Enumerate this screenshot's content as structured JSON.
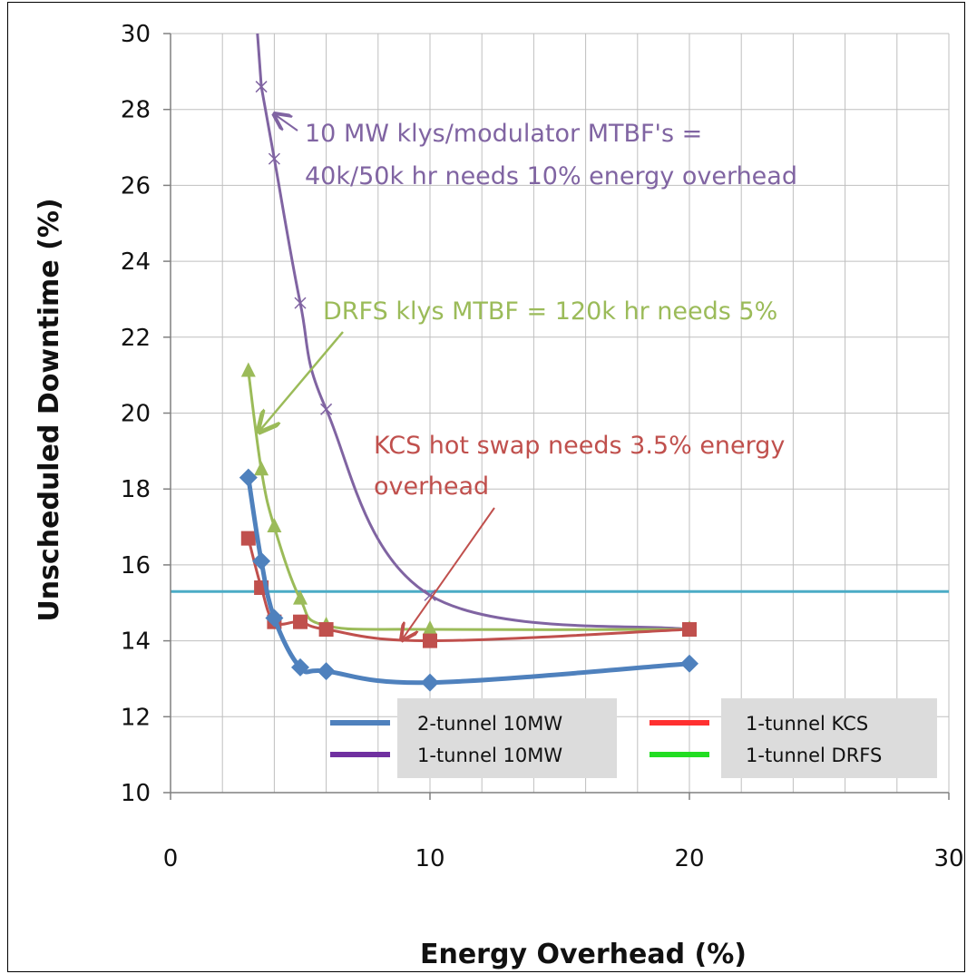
{
  "chart_data": {
    "type": "line",
    "xlabel": "Energy Overhead (%)",
    "ylabel": "Unscheduled Downtime (%)",
    "xlim": [
      0,
      30
    ],
    "ylim": [
      10,
      30
    ],
    "x_ticks": [
      0,
      10,
      20,
      30
    ],
    "y_ticks": [
      10,
      12,
      14,
      16,
      18,
      20,
      22,
      24,
      26,
      28,
      30
    ],
    "grid": true,
    "reference_line": {
      "y": 15.3,
      "color": "#4bacc6"
    },
    "series": [
      {
        "name": "2-tunnel 10MW",
        "color": "#4f81bd",
        "marker": "diamond",
        "x": [
          3,
          3.5,
          4,
          5,
          6,
          10,
          20
        ],
        "y": [
          18.3,
          16.1,
          14.6,
          13.3,
          13.2,
          12.9,
          13.4
        ]
      },
      {
        "name": "1-tunnel 10MW",
        "color": "#8064a2",
        "marker": "x",
        "x": [
          3.5,
          4,
          5,
          6,
          10,
          20
        ],
        "y": [
          28.6,
          26.7,
          22.9,
          20.1,
          15.2,
          14.3
        ]
      },
      {
        "name": "1-tunnel KCS",
        "color": "#c0504d",
        "marker": "square",
        "x": [
          3,
          3.5,
          4,
          5,
          6,
          10,
          20
        ],
        "y": [
          16.7,
          15.4,
          14.5,
          14.5,
          14.3,
          14.0,
          14.3
        ]
      },
      {
        "name": "1-tunnel DRFS",
        "color": "#9bbb59",
        "marker": "triangle",
        "x": [
          3,
          3.5,
          4,
          5,
          6,
          10,
          20
        ],
        "y": [
          21.1,
          18.5,
          17.0,
          15.1,
          14.4,
          14.3,
          14.3
        ]
      }
    ],
    "legend_placement": "bottom-center",
    "annotations": [
      {
        "lines": [
          "10 MW klys/modulator MTBF's =",
          "40k/50k hr needs 10% energy overhead"
        ],
        "color": "#8064a2"
      },
      {
        "lines": [
          "DRFS klys MTBF = 120k hr needs 5%"
        ],
        "color": "#9bbb59"
      },
      {
        "lines": [
          "KCS  hot swap needs 3.5% energy",
          "overhead"
        ],
        "color": "#c0504d"
      }
    ]
  }
}
